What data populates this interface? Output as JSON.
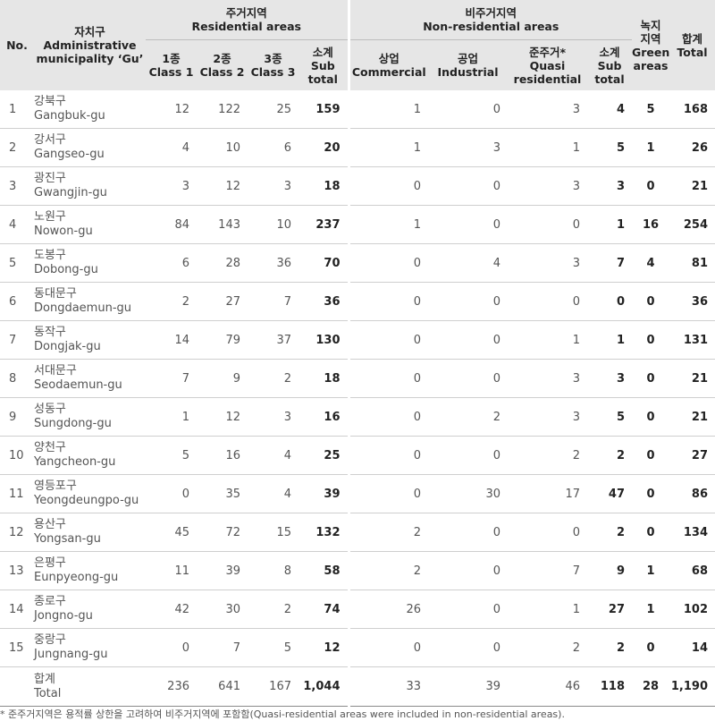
{
  "header": {
    "no": "No.",
    "gu_kr": "자치구",
    "gu_en1": "Administrative",
    "gu_en2": "municipality ‘Gu’",
    "res_kr": "주거지역",
    "res_en": "Residential areas",
    "nonres_kr": "비주거지역",
    "nonres_en": "Non-residential areas",
    "green_1": "녹지",
    "green_2": "지역",
    "green_3": "Green",
    "green_4": "areas",
    "total_kr": "합계",
    "total_en": "Total",
    "c1_kr": "1종",
    "c1_en": "Class 1",
    "c2_kr": "2종",
    "c2_en": "Class 2",
    "c3_kr": "3종",
    "c3_en": "Class 3",
    "sub_kr": "소계",
    "sub_en1": "Sub",
    "sub_en2": "total",
    "com_kr": "상업",
    "com_en": "Commercial",
    "ind_kr": "공업",
    "ind_en": "Industrial",
    "quasi_kr": "준주거*",
    "quasi_en1": "Quasi",
    "quasi_en2": "residential",
    "sub2_kr": "소계",
    "sub2_en1": "Sub",
    "sub2_en2": "total"
  },
  "rows": [
    {
      "no": "1",
      "kr": "강북구",
      "en": "Gangbuk-gu",
      "c1": "12",
      "c2": "122",
      "c3": "25",
      "rsub": "159",
      "com": "1",
      "ind": "0",
      "quasi": "3",
      "nsub": "4",
      "green": "5",
      "total": "168"
    },
    {
      "no": "2",
      "kr": "강서구",
      "en": "Gangseo-gu",
      "c1": "4",
      "c2": "10",
      "c3": "6",
      "rsub": "20",
      "com": "1",
      "ind": "3",
      "quasi": "1",
      "nsub": "5",
      "green": "1",
      "total": "26"
    },
    {
      "no": "3",
      "kr": "광진구",
      "en": "Gwangjin-gu",
      "c1": "3",
      "c2": "12",
      "c3": "3",
      "rsub": "18",
      "com": "0",
      "ind": "0",
      "quasi": "3",
      "nsub": "3",
      "green": "0",
      "total": "21"
    },
    {
      "no": "4",
      "kr": "노원구",
      "en": "Nowon-gu",
      "c1": "84",
      "c2": "143",
      "c3": "10",
      "rsub": "237",
      "com": "1",
      "ind": "0",
      "quasi": "0",
      "nsub": "1",
      "green": "16",
      "total": "254"
    },
    {
      "no": "5",
      "kr": "도봉구",
      "en": "Dobong-gu",
      "c1": "6",
      "c2": "28",
      "c3": "36",
      "rsub": "70",
      "com": "0",
      "ind": "4",
      "quasi": "3",
      "nsub": "7",
      "green": "4",
      "total": "81"
    },
    {
      "no": "6",
      "kr": "동대문구",
      "en": "Dongdaemun-gu",
      "c1": "2",
      "c2": "27",
      "c3": "7",
      "rsub": "36",
      "com": "0",
      "ind": "0",
      "quasi": "0",
      "nsub": "0",
      "green": "0",
      "total": "36"
    },
    {
      "no": "7",
      "kr": "동작구",
      "en": "Dongjak-gu",
      "c1": "14",
      "c2": "79",
      "c3": "37",
      "rsub": "130",
      "com": "0",
      "ind": "0",
      "quasi": "1",
      "nsub": "1",
      "green": "0",
      "total": "131"
    },
    {
      "no": "8",
      "kr": "서대문구",
      "en": "Seodaemun-gu",
      "c1": "7",
      "c2": "9",
      "c3": "2",
      "rsub": "18",
      "com": "0",
      "ind": "0",
      "quasi": "3",
      "nsub": "3",
      "green": "0",
      "total": "21"
    },
    {
      "no": "9",
      "kr": "성동구",
      "en": "Sungdong-gu",
      "c1": "1",
      "c2": "12",
      "c3": "3",
      "rsub": "16",
      "com": "0",
      "ind": "2",
      "quasi": "3",
      "nsub": "5",
      "green": "0",
      "total": "21"
    },
    {
      "no": "10",
      "kr": "양천구",
      "en": "Yangcheon-gu",
      "c1": "5",
      "c2": "16",
      "c3": "4",
      "rsub": "25",
      "com": "0",
      "ind": "0",
      "quasi": "2",
      "nsub": "2",
      "green": "0",
      "total": "27"
    },
    {
      "no": "11",
      "kr": "영등포구",
      "en": "Yeongdeungpo-gu",
      "c1": "0",
      "c2": "35",
      "c3": "4",
      "rsub": "39",
      "com": "0",
      "ind": "30",
      "quasi": "17",
      "nsub": "47",
      "green": "0",
      "total": "86"
    },
    {
      "no": "12",
      "kr": "용산구",
      "en": "Yongsan-gu",
      "c1": "45",
      "c2": "72",
      "c3": "15",
      "rsub": "132",
      "com": "2",
      "ind": "0",
      "quasi": "0",
      "nsub": "2",
      "green": "0",
      "total": "134"
    },
    {
      "no": "13",
      "kr": "은평구",
      "en": "Eunpyeong-gu",
      "c1": "11",
      "c2": "39",
      "c3": "8",
      "rsub": "58",
      "com": "2",
      "ind": "0",
      "quasi": "7",
      "nsub": "9",
      "green": "1",
      "total": "68"
    },
    {
      "no": "14",
      "kr": "종로구",
      "en": "Jongno-gu",
      "c1": "42",
      "c2": "30",
      "c3": "2",
      "rsub": "74",
      "com": "26",
      "ind": "0",
      "quasi": "1",
      "nsub": "27",
      "green": "1",
      "total": "102"
    },
    {
      "no": "15",
      "kr": "중랑구",
      "en": "Jungnang-gu",
      "c1": "0",
      "c2": "7",
      "c3": "5",
      "rsub": "12",
      "com": "0",
      "ind": "0",
      "quasi": "2",
      "nsub": "2",
      "green": "0",
      "total": "14"
    }
  ],
  "total_row": {
    "kr": "합계",
    "en": "Total",
    "c1": "236",
    "c2": "641",
    "c3": "167",
    "rsub": "1,044",
    "com": "33",
    "ind": "39",
    "quasi": "46",
    "nsub": "118",
    "green": "28",
    "total": "1,190"
  },
  "footnote": "* 준주거지역은 용적률 상한을 고려하여 비주거지역에 포함함(Quasi-residential areas were included in non-residential areas)."
}
